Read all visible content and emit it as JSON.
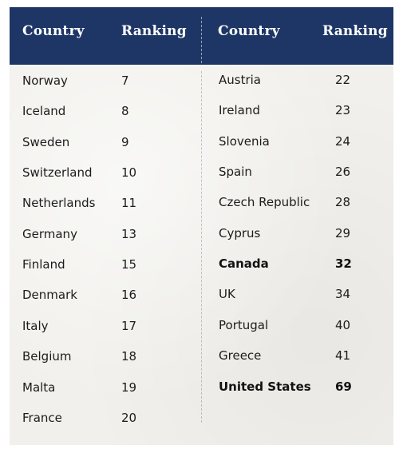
{
  "headers": {
    "left_country": "Country",
    "left_ranking": "Ranking",
    "right_country": "Country",
    "right_ranking": "Ranking"
  },
  "chart_data": {
    "type": "table",
    "columns": [
      "Country",
      "Ranking",
      "Country",
      "Ranking"
    ],
    "left_rows": [
      {
        "country": "Norway",
        "ranking": "7"
      },
      {
        "country": "Iceland",
        "ranking": "8"
      },
      {
        "country": "Sweden",
        "ranking": "9"
      },
      {
        "country": "Switzerland",
        "ranking": "10"
      },
      {
        "country": "Netherlands",
        "ranking": "11"
      },
      {
        "country": "Germany",
        "ranking": "13"
      },
      {
        "country": "Finland",
        "ranking": "15"
      },
      {
        "country": "Denmark",
        "ranking": "16"
      },
      {
        "country": "Italy",
        "ranking": "17"
      },
      {
        "country": "Belgium",
        "ranking": "18"
      },
      {
        "country": "Malta",
        "ranking": "19"
      },
      {
        "country": "France",
        "ranking": "20"
      }
    ],
    "right_rows": [
      {
        "country": "Austria",
        "ranking": "22"
      },
      {
        "country": "Ireland",
        "ranking": "23"
      },
      {
        "country": "Slovenia",
        "ranking": "24"
      },
      {
        "country": "Spain",
        "ranking": "26"
      },
      {
        "country": "Czech Republic",
        "ranking": "28"
      },
      {
        "country": "Cyprus",
        "ranking": "29"
      },
      {
        "country": "Canada",
        "ranking": "32",
        "bold": true
      },
      {
        "country": "UK",
        "ranking": "34"
      },
      {
        "country": "Portugal",
        "ranking": "40"
      },
      {
        "country": "Greece",
        "ranking": "41"
      },
      {
        "country": "United States",
        "ranking": "69",
        "bold": true
      }
    ]
  },
  "colors": {
    "header_bg": "#1e3666",
    "header_text": "#ffffff",
    "body_bg": "#f1f0ec",
    "body_text": "#1c1c1c"
  }
}
